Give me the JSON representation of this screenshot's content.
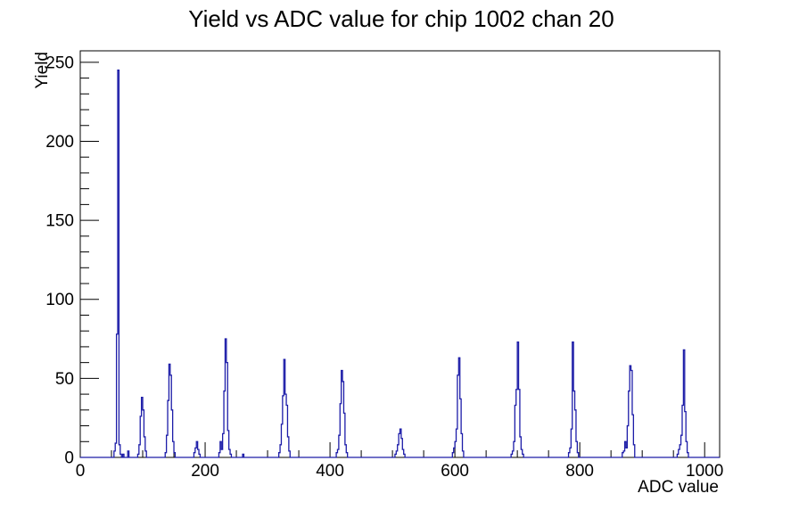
{
  "chart_data": {
    "type": "bar",
    "style": "root-histogram-step-outline",
    "title": "Yield vs ADC value for chip 1002 chan 20",
    "xlabel": "ADC value",
    "ylabel": "Yield",
    "xlim": [
      0,
      1024
    ],
    "ylim": [
      0,
      257.25
    ],
    "x_major_ticks": [
      0,
      200,
      400,
      600,
      800,
      1000
    ],
    "x_minor_step": 50,
    "y_major_ticks": [
      0,
      50,
      100,
      150,
      200,
      250
    ],
    "y_minor_step": 10,
    "grid": false,
    "legend": false,
    "bin_width": 2,
    "line_color": "#1c1ca8",
    "frame_color": "#000000",
    "text_color": "#000000",
    "background": "#ffffff",
    "peaks_summary": [
      {
        "adc": 60,
        "yield": 245
      },
      {
        "adc": 98,
        "yield": 38
      },
      {
        "adc": 143,
        "yield": 59
      },
      {
        "adc": 186,
        "yield": 10
      },
      {
        "adc": 233,
        "yield": 75
      },
      {
        "adc": 327,
        "yield": 62
      },
      {
        "adc": 419,
        "yield": 55
      },
      {
        "adc": 512,
        "yield": 18
      },
      {
        "adc": 607,
        "yield": 63
      },
      {
        "adc": 700,
        "yield": 73
      },
      {
        "adc": 789,
        "yield": 73
      },
      {
        "adc": 881,
        "yield": 58
      },
      {
        "adc": 967,
        "yield": 68
      }
    ],
    "bins": [
      [
        54,
        4
      ],
      [
        56,
        9
      ],
      [
        58,
        78
      ],
      [
        60,
        245
      ],
      [
        62,
        8
      ],
      [
        64,
        2
      ],
      [
        68,
        2
      ],
      [
        76,
        4
      ],
      [
        92,
        2
      ],
      [
        94,
        8
      ],
      [
        96,
        26
      ],
      [
        98,
        38
      ],
      [
        100,
        30
      ],
      [
        102,
        13
      ],
      [
        104,
        4
      ],
      [
        136,
        3
      ],
      [
        138,
        14
      ],
      [
        140,
        36
      ],
      [
        142,
        59
      ],
      [
        144,
        52
      ],
      [
        146,
        30
      ],
      [
        148,
        10
      ],
      [
        150,
        3
      ],
      [
        182,
        3
      ],
      [
        184,
        6
      ],
      [
        186,
        10
      ],
      [
        188,
        5
      ],
      [
        190,
        2
      ],
      [
        222,
        3
      ],
      [
        224,
        10
      ],
      [
        226,
        5
      ],
      [
        228,
        15
      ],
      [
        230,
        42
      ],
      [
        232,
        75
      ],
      [
        234,
        60
      ],
      [
        236,
        17
      ],
      [
        238,
        5
      ],
      [
        240,
        2
      ],
      [
        260,
        2
      ],
      [
        318,
        3
      ],
      [
        320,
        8
      ],
      [
        322,
        21
      ],
      [
        324,
        39
      ],
      [
        326,
        62
      ],
      [
        328,
        40
      ],
      [
        330,
        33
      ],
      [
        332,
        13
      ],
      [
        334,
        4
      ],
      [
        410,
        3
      ],
      [
        412,
        5
      ],
      [
        414,
        14
      ],
      [
        416,
        34
      ],
      [
        418,
        55
      ],
      [
        420,
        48
      ],
      [
        422,
        28
      ],
      [
        424,
        8
      ],
      [
        426,
        3
      ],
      [
        504,
        2
      ],
      [
        506,
        4
      ],
      [
        508,
        8
      ],
      [
        510,
        15
      ],
      [
        512,
        18
      ],
      [
        514,
        12
      ],
      [
        516,
        5
      ],
      [
        518,
        2
      ],
      [
        596,
        3
      ],
      [
        598,
        6
      ],
      [
        600,
        10
      ],
      [
        602,
        18
      ],
      [
        604,
        52
      ],
      [
        606,
        63
      ],
      [
        608,
        37
      ],
      [
        610,
        15
      ],
      [
        612,
        4
      ],
      [
        690,
        2
      ],
      [
        692,
        4
      ],
      [
        694,
        10
      ],
      [
        696,
        33
      ],
      [
        698,
        43
      ],
      [
        700,
        73
      ],
      [
        702,
        43
      ],
      [
        704,
        13
      ],
      [
        706,
        5
      ],
      [
        708,
        2
      ],
      [
        782,
        3
      ],
      [
        784,
        6
      ],
      [
        786,
        18
      ],
      [
        788,
        73
      ],
      [
        790,
        42
      ],
      [
        792,
        30
      ],
      [
        794,
        10
      ],
      [
        796,
        3
      ],
      [
        868,
        3
      ],
      [
        870,
        4
      ],
      [
        872,
        10
      ],
      [
        874,
        6
      ],
      [
        876,
        20
      ],
      [
        878,
        42
      ],
      [
        880,
        58
      ],
      [
        882,
        55
      ],
      [
        884,
        27
      ],
      [
        886,
        8
      ],
      [
        956,
        2
      ],
      [
        958,
        5
      ],
      [
        960,
        8
      ],
      [
        962,
        14
      ],
      [
        964,
        33
      ],
      [
        966,
        68
      ],
      [
        968,
        29
      ],
      [
        970,
        10
      ],
      [
        972,
        3
      ]
    ]
  }
}
